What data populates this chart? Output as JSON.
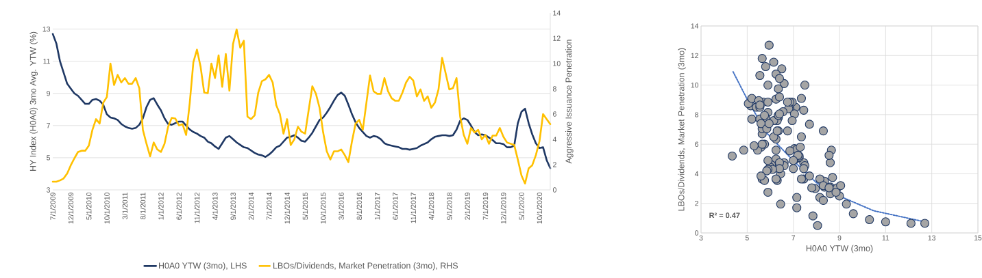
{
  "chart_data": [
    {
      "type": "line",
      "ylabel": "HY Index (H0A0) 3mo Avg. YTW (%)",
      "y2label": "Aggressive Issuance Penetration",
      "grid": "y",
      "legend": "bottom",
      "x": [
        "2009-07",
        "2009-08",
        "2009-09",
        "2009-10",
        "2009-11",
        "2009-12",
        "2010-01",
        "2010-02",
        "2010-03",
        "2010-04",
        "2010-05",
        "2010-06",
        "2010-07",
        "2010-08",
        "2010-09",
        "2010-10",
        "2010-11",
        "2010-12",
        "2011-01",
        "2011-02",
        "2011-03",
        "2011-04",
        "2011-05",
        "2011-06",
        "2011-07",
        "2011-08",
        "2011-09",
        "2011-10",
        "2011-11",
        "2011-12",
        "2012-01",
        "2012-02",
        "2012-03",
        "2012-04",
        "2012-05",
        "2012-06",
        "2012-07",
        "2012-08",
        "2012-09",
        "2012-10",
        "2012-11",
        "2012-12",
        "2013-01",
        "2013-02",
        "2013-03",
        "2013-04",
        "2013-05",
        "2013-06",
        "2013-07",
        "2013-08",
        "2013-09",
        "2013-10",
        "2013-11",
        "2013-12",
        "2014-01",
        "2014-02",
        "2014-03",
        "2014-04",
        "2014-05",
        "2014-06",
        "2014-07",
        "2014-08",
        "2014-09",
        "2014-10",
        "2014-11",
        "2014-12",
        "2015-01",
        "2015-02",
        "2015-03",
        "2015-04",
        "2015-05",
        "2015-06",
        "2015-07",
        "2015-08",
        "2015-09",
        "2015-10",
        "2015-11",
        "2015-12",
        "2016-01",
        "2016-02",
        "2016-03",
        "2016-04",
        "2016-05",
        "2016-06",
        "2016-07",
        "2016-08",
        "2016-09",
        "2016-10",
        "2016-11",
        "2016-12",
        "2017-01",
        "2017-02",
        "2017-03",
        "2017-04",
        "2017-05",
        "2017-06",
        "2017-07",
        "2017-08",
        "2017-09",
        "2017-10",
        "2017-11",
        "2017-12",
        "2018-01",
        "2018-02",
        "2018-03",
        "2018-04",
        "2018-05",
        "2018-06",
        "2018-07",
        "2018-08",
        "2018-09",
        "2018-10",
        "2018-11",
        "2018-12",
        "2019-01",
        "2019-02",
        "2019-03",
        "2019-04",
        "2019-05",
        "2019-06",
        "2019-07",
        "2019-08",
        "2019-09",
        "2019-10",
        "2019-11",
        "2019-12",
        "2020-01",
        "2020-02",
        "2020-03",
        "2020-04",
        "2020-05",
        "2020-06",
        "2020-07",
        "2020-08",
        "2020-09",
        "2020-10",
        "2020-11",
        "2020-12",
        "2021-01"
      ],
      "xlim": [
        "2009-07",
        "2021-01"
      ],
      "xticks": [
        {
          "value": "2009-07",
          "label": "7/1/2009"
        },
        {
          "value": "2009-12",
          "label": "12/1/2009"
        },
        {
          "value": "2010-05",
          "label": "5/1/2010"
        },
        {
          "value": "2010-10",
          "label": "10/1/2010"
        },
        {
          "value": "2011-03",
          "label": "3/1/2011"
        },
        {
          "value": "2011-08",
          "label": "8/1/2011"
        },
        {
          "value": "2012-01",
          "label": "1/1/2012"
        },
        {
          "value": "2012-06",
          "label": "6/1/2012"
        },
        {
          "value": "2012-11",
          "label": "11/1/2012"
        },
        {
          "value": "2013-04",
          "label": "4/1/2013"
        },
        {
          "value": "2013-09",
          "label": "9/1/2013"
        },
        {
          "value": "2014-02",
          "label": "2/1/2014"
        },
        {
          "value": "2014-07",
          "label": "7/1/2014"
        },
        {
          "value": "2014-12",
          "label": "12/1/2014"
        },
        {
          "value": "2015-05",
          "label": "5/1/2015"
        },
        {
          "value": "2015-10",
          "label": "10/1/2015"
        },
        {
          "value": "2016-03",
          "label": "3/1/2016"
        },
        {
          "value": "2016-08",
          "label": "8/1/2016"
        },
        {
          "value": "2017-01",
          "label": "1/1/2017"
        },
        {
          "value": "2017-06",
          "label": "6/1/2017"
        },
        {
          "value": "2017-11",
          "label": "11/1/2017"
        },
        {
          "value": "2018-04",
          "label": "4/1/2018"
        },
        {
          "value": "2018-09",
          "label": "9/1/2018"
        },
        {
          "value": "2019-02",
          "label": "2/1/2019"
        },
        {
          "value": "2019-07",
          "label": "7/1/2019"
        },
        {
          "value": "2019-12",
          "label": "12/1/2019"
        },
        {
          "value": "2020-05",
          "label": "5/1/2020"
        },
        {
          "value": "2020-10",
          "label": "10/1/2020"
        }
      ],
      "ylim": [
        3,
        14
      ],
      "yticks": [
        3,
        5,
        7,
        9,
        11,
        13
      ],
      "y2lim": [
        0,
        14
      ],
      "y2ticks": [
        0,
        2,
        4,
        6,
        8,
        10,
        12,
        14
      ],
      "series": [
        {
          "name": "H0A0 YTW (3mo), LHS",
          "color": "#1f3864",
          "values": [
            12.7,
            12.1,
            11.0,
            10.3,
            9.6,
            9.3,
            9.0,
            8.85,
            8.6,
            8.35,
            8.35,
            8.6,
            8.65,
            8.55,
            8.3,
            7.7,
            7.5,
            7.45,
            7.35,
            7.1,
            6.95,
            6.85,
            6.8,
            6.85,
            7.05,
            7.45,
            8.15,
            8.6,
            8.7,
            8.3,
            7.95,
            7.45,
            7.1,
            7.05,
            7.15,
            7.25,
            7.25,
            7.0,
            6.75,
            6.6,
            6.5,
            6.35,
            6.25,
            6.0,
            5.9,
            5.7,
            5.55,
            5.9,
            6.25,
            6.35,
            6.15,
            5.95,
            5.8,
            5.65,
            5.6,
            5.45,
            5.3,
            5.2,
            5.15,
            5.05,
            5.2,
            5.4,
            5.65,
            5.75,
            6.0,
            6.25,
            6.3,
            6.4,
            6.25,
            6.05,
            6.0,
            6.25,
            6.55,
            6.95,
            7.35,
            7.5,
            7.8,
            8.15,
            8.55,
            8.9,
            9.05,
            8.85,
            8.3,
            7.7,
            7.2,
            6.85,
            6.6,
            6.35,
            6.25,
            6.35,
            6.3,
            6.15,
            5.9,
            5.8,
            5.75,
            5.7,
            5.65,
            5.55,
            5.55,
            5.5,
            5.55,
            5.6,
            5.75,
            5.85,
            5.95,
            6.15,
            6.3,
            6.35,
            6.4,
            6.4,
            6.35,
            6.4,
            6.75,
            7.3,
            7.45,
            7.35,
            7.0,
            6.6,
            6.4,
            6.45,
            6.4,
            6.25,
            6.1,
            5.9,
            5.9,
            5.85,
            5.65,
            5.65,
            5.75,
            7.15,
            7.85,
            8.05,
            7.15,
            6.45,
            5.9,
            5.6,
            5.65,
            4.85,
            4.35
          ]
        },
        {
          "name": "LBOs/Dividends, Market Penetration (3mo), RHS",
          "color": "#ffc000",
          "axis": "y2",
          "values": [
            0.65,
            0.65,
            0.75,
            0.9,
            1.3,
            1.95,
            2.5,
            3.0,
            3.1,
            3.1,
            3.5,
            4.75,
            5.6,
            5.25,
            6.9,
            7.35,
            10.0,
            8.3,
            9.1,
            8.5,
            8.85,
            8.4,
            8.4,
            8.85,
            8.05,
            4.75,
            3.65,
            2.65,
            3.75,
            3.2,
            3.0,
            3.65,
            5.0,
            5.7,
            5.65,
            5.1,
            5.2,
            4.35,
            6.9,
            10.1,
            11.1,
            9.75,
            7.7,
            7.65,
            10.0,
            8.85,
            10.65,
            8.15,
            10.75,
            7.85,
            11.55,
            12.7,
            11.25,
            11.8,
            5.8,
            5.6,
            5.9,
            7.7,
            8.6,
            8.75,
            9.1,
            8.5,
            6.7,
            6.0,
            4.45,
            5.6,
            3.55,
            4.0,
            5.0,
            4.6,
            4.45,
            6.35,
            8.2,
            7.6,
            6.5,
            4.55,
            3.05,
            2.4,
            3.05,
            3.05,
            3.2,
            2.75,
            2.2,
            3.85,
            5.25,
            5.55,
            4.75,
            6.9,
            9.05,
            7.8,
            7.6,
            7.6,
            8.85,
            7.8,
            7.25,
            7.05,
            7.05,
            7.7,
            8.5,
            8.95,
            8.65,
            7.4,
            7.95,
            7.05,
            7.4,
            6.5,
            6.9,
            7.95,
            10.45,
            9.2,
            7.95,
            8.05,
            8.85,
            5.8,
            4.35,
            3.65,
            4.9,
            4.55,
            4.75,
            4.0,
            4.35,
            3.65,
            4.3,
            4.3,
            4.9,
            4.2,
            3.75,
            3.65,
            3.55,
            2.4,
            1.15,
            0.5,
            1.7,
            1.95,
            2.75,
            3.85,
            6.0,
            5.6,
            5.2
          ]
        }
      ]
    },
    {
      "type": "scatter",
      "xlabel": "H0A0 YTW (3mo)",
      "ylabel": "LBOs/Dividends, Market Penetration (3mo)",
      "grid": true,
      "annotations": [
        "R² = 0.47"
      ],
      "xlim": [
        3,
        15
      ],
      "xticks": [
        3,
        5,
        7,
        9,
        11,
        13,
        15
      ],
      "ylim": [
        0,
        14
      ],
      "yticks": [
        0,
        2,
        4,
        6,
        8,
        10,
        12,
        14
      ],
      "series": [
        {
          "color": "#a5a5a5",
          "marker": "circle",
          "x": [
            12.7,
            12.1,
            11.0,
            10.3,
            9.6,
            9.3,
            9.0,
            8.6,
            8.35,
            8.35,
            8.6,
            8.65,
            8.55,
            8.3,
            7.7,
            7.5,
            7.45,
            7.35,
            7.1,
            6.95,
            6.85,
            6.8,
            6.85,
            7.05,
            7.45,
            8.15,
            8.6,
            8.7,
            8.3,
            7.95,
            7.45,
            7.1,
            7.05,
            7.15,
            7.25,
            7.25,
            7.0,
            6.75,
            6.6,
            6.5,
            6.35,
            5.9,
            5.7,
            5.55,
            5.9,
            6.25,
            6.15,
            5.95,
            5.8,
            5.65,
            5.6,
            5.45,
            5.3,
            5.2,
            5.15,
            5.05,
            5.2,
            5.4,
            5.65,
            5.75,
            6.25,
            6.3,
            6.25,
            6.05,
            6.0,
            6.25,
            6.55,
            6.95,
            7.35,
            7.5,
            7.8,
            8.15,
            8.55,
            8.9,
            9.05,
            8.85,
            8.3,
            7.7,
            7.2,
            6.85,
            6.6,
            6.35,
            6.25,
            6.35,
            6.3,
            6.15,
            5.9,
            5.8,
            5.65,
            5.55,
            5.55,
            5.5,
            5.55,
            5.6,
            5.75,
            5.85,
            5.95,
            6.15,
            6.3,
            6.35,
            6.4,
            6.4,
            6.35,
            6.4,
            6.75,
            7.3,
            7.45,
            7.35,
            7.0,
            6.6,
            6.4,
            6.45,
            6.4,
            6.25,
            6.1,
            5.9,
            5.9,
            5.85,
            5.65,
            5.75,
            7.15,
            7.85,
            8.05,
            7.15,
            6.45,
            5.9,
            5.6,
            5.65,
            4.85,
            4.35
          ],
          "values": [
            0.65,
            0.65,
            0.75,
            0.9,
            1.3,
            1.95,
            2.5,
            3.1,
            3.1,
            3.5,
            4.75,
            5.6,
            5.25,
            6.9,
            7.35,
            10.0,
            8.3,
            9.1,
            8.5,
            8.85,
            8.4,
            8.4,
            8.85,
            8.05,
            4.75,
            3.65,
            2.65,
            3.75,
            3.2,
            3.0,
            3.65,
            5.0,
            5.7,
            5.65,
            5.1,
            5.2,
            4.35,
            6.9,
            10.1,
            11.1,
            9.75,
            10.0,
            8.85,
            10.65,
            8.15,
            10.75,
            11.55,
            12.7,
            11.25,
            11.8,
            5.8,
            5.6,
            5.9,
            7.7,
            8.6,
            8.75,
            9.1,
            8.5,
            6.7,
            6.0,
            5.6,
            3.55,
            5.0,
            4.6,
            4.45,
            6.35,
            8.2,
            7.6,
            6.5,
            4.55,
            3.05,
            2.4,
            3.05,
            3.05,
            3.2,
            2.75,
            2.2,
            3.85,
            5.25,
            5.55,
            4.75,
            6.9,
            9.05,
            7.8,
            7.6,
            7.6,
            8.85,
            7.8,
            7.05,
            7.7,
            8.5,
            8.95,
            8.65,
            7.4,
            7.95,
            7.05,
            7.4,
            6.5,
            6.9,
            7.95,
            10.45,
            9.2,
            7.95,
            8.05,
            8.85,
            5.8,
            4.35,
            3.65,
            4.9,
            4.55,
            4.75,
            4.0,
            4.35,
            3.65,
            4.3,
            4.3,
            4.9,
            4.2,
            3.65,
            3.55,
            2.4,
            1.15,
            0.5,
            1.7,
            1.95,
            2.75,
            3.85,
            6.0,
            5.6,
            5.2
          ]
        },
        {
          "type": "line",
          "color": "#4472c4",
          "line_style": "dotted",
          "x": [
            4.39,
            5.03,
            5.82,
            6.96,
            8.0,
            8.99,
            10.48,
            12.55
          ],
          "values": [
            10.9,
            8.95,
            6.8,
            4.95,
            3.4,
            2.5,
            1.5,
            0.8
          ]
        }
      ]
    }
  ]
}
